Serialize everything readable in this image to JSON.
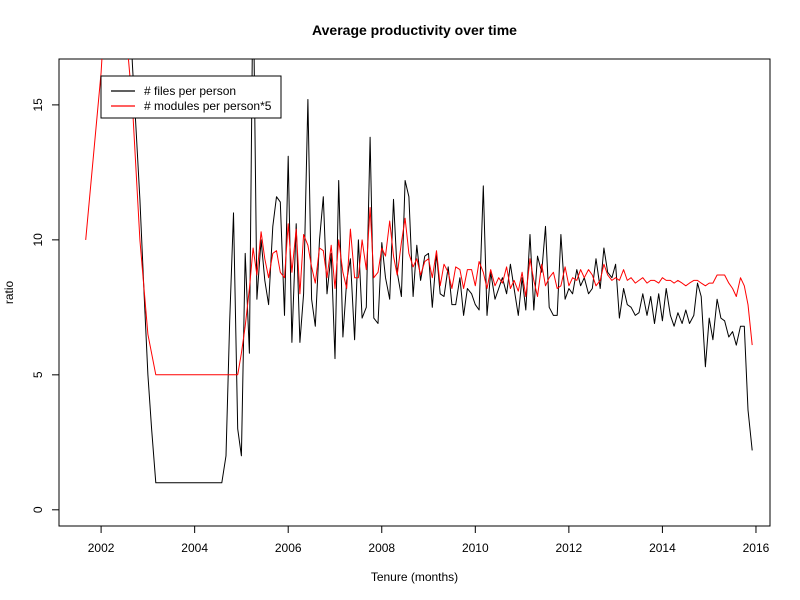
{
  "chart_data": {
    "type": "line",
    "title": "Average productivity over time",
    "xlabel": "Tenure (months)",
    "ylabel": "ratio",
    "xlim": [
      2001.1,
      2016.3
    ],
    "ylim": [
      -0.6,
      16.7
    ],
    "x_ticks": [
      {
        "value": 2002,
        "label": "2002"
      },
      {
        "value": 2004,
        "label": "2004"
      },
      {
        "value": 2006,
        "label": "2006"
      },
      {
        "value": 2008,
        "label": "2008"
      },
      {
        "value": 2010,
        "label": "2010"
      },
      {
        "value": 2012,
        "label": "2012"
      },
      {
        "value": 2014,
        "label": "2014"
      },
      {
        "value": 2016,
        "label": "2016"
      }
    ],
    "y_ticks": [
      {
        "value": 0,
        "label": "0"
      },
      {
        "value": 5,
        "label": "5"
      },
      {
        "value": 10,
        "label": "10"
      },
      {
        "value": 15,
        "label": "15"
      }
    ],
    "grid": false,
    "legend_position": "top-left",
    "series": [
      {
        "name": "# files per person",
        "color": "#000000",
        "points": [
          [
            2002.58,
            20
          ],
          [
            2002.67,
            16.5
          ],
          [
            2002.75,
            14
          ],
          [
            2002.83,
            11.5
          ],
          [
            2002.92,
            8
          ],
          [
            2003.0,
            5
          ],
          [
            2003.08,
            3
          ],
          [
            2003.17,
            1
          ],
          [
            2003.5,
            1
          ],
          [
            2004.0,
            1
          ],
          [
            2004.5,
            1
          ],
          [
            2004.58,
            1
          ],
          [
            2004.67,
            2
          ],
          [
            2004.75,
            7
          ],
          [
            2004.83,
            11
          ],
          [
            2004.92,
            3
          ],
          [
            2005.0,
            2
          ],
          [
            2005.08,
            9.5
          ],
          [
            2005.17,
            5.8
          ],
          [
            2005.25,
            20
          ],
          [
            2005.33,
            7.8
          ],
          [
            2005.42,
            10
          ],
          [
            2005.5,
            8.5
          ],
          [
            2005.58,
            7.6
          ],
          [
            2005.67,
            10.5
          ],
          [
            2005.75,
            11.6
          ],
          [
            2005.83,
            11.4
          ],
          [
            2005.92,
            7.2
          ],
          [
            2006.0,
            13.1
          ],
          [
            2006.08,
            6.2
          ],
          [
            2006.17,
            10.6
          ],
          [
            2006.25,
            6.2
          ],
          [
            2006.33,
            8.0
          ],
          [
            2006.42,
            15.2
          ],
          [
            2006.5,
            7.8
          ],
          [
            2006.58,
            6.8
          ],
          [
            2006.67,
            10.0
          ],
          [
            2006.75,
            11.6
          ],
          [
            2006.83,
            8.0
          ],
          [
            2006.92,
            9.5
          ],
          [
            2007.0,
            5.6
          ],
          [
            2007.08,
            12.2
          ],
          [
            2007.17,
            6.4
          ],
          [
            2007.25,
            8.5
          ],
          [
            2007.33,
            9.3
          ],
          [
            2007.42,
            6.3
          ],
          [
            2007.5,
            10.0
          ],
          [
            2007.58,
            7.1
          ],
          [
            2007.67,
            7.5
          ],
          [
            2007.75,
            13.8
          ],
          [
            2007.83,
            7.1
          ],
          [
            2007.92,
            6.9
          ],
          [
            2008.0,
            9.9
          ],
          [
            2008.08,
            8.6
          ],
          [
            2008.17,
            7.8
          ],
          [
            2008.25,
            11.5
          ],
          [
            2008.33,
            8.8
          ],
          [
            2008.42,
            7.9
          ],
          [
            2008.5,
            12.2
          ],
          [
            2008.58,
            11.6
          ],
          [
            2008.67,
            7.9
          ],
          [
            2008.75,
            9.8
          ],
          [
            2008.83,
            8.5
          ],
          [
            2008.92,
            9.4
          ],
          [
            2009.0,
            9.5
          ],
          [
            2009.08,
            7.5
          ],
          [
            2009.17,
            9.5
          ],
          [
            2009.25,
            8.0
          ],
          [
            2009.33,
            7.9
          ],
          [
            2009.42,
            9.0
          ],
          [
            2009.5,
            7.6
          ],
          [
            2009.58,
            7.6
          ],
          [
            2009.67,
            8.6
          ],
          [
            2009.75,
            7.2
          ],
          [
            2009.83,
            8.2
          ],
          [
            2009.92,
            8.0
          ],
          [
            2010.0,
            7.6
          ],
          [
            2010.08,
            7.4
          ],
          [
            2010.17,
            12.0
          ],
          [
            2010.25,
            7.2
          ],
          [
            2010.33,
            8.8
          ],
          [
            2010.42,
            7.8
          ],
          [
            2010.5,
            8.2
          ],
          [
            2010.58,
            8.6
          ],
          [
            2010.67,
            8.0
          ],
          [
            2010.75,
            9.1
          ],
          [
            2010.83,
            8.2
          ],
          [
            2010.92,
            7.2
          ],
          [
            2011.0,
            8.6
          ],
          [
            2011.08,
            7.4
          ],
          [
            2011.17,
            10.2
          ],
          [
            2011.25,
            7.4
          ],
          [
            2011.33,
            9.4
          ],
          [
            2011.42,
            8.8
          ],
          [
            2011.5,
            10.5
          ],
          [
            2011.58,
            7.5
          ],
          [
            2011.67,
            7.2
          ],
          [
            2011.75,
            7.2
          ],
          [
            2011.83,
            10.2
          ],
          [
            2011.92,
            7.8
          ],
          [
            2012.0,
            8.2
          ],
          [
            2012.08,
            8.0
          ],
          [
            2012.17,
            8.9
          ],
          [
            2012.25,
            8.3
          ],
          [
            2012.33,
            8.6
          ],
          [
            2012.42,
            8.0
          ],
          [
            2012.5,
            8.2
          ],
          [
            2012.58,
            9.3
          ],
          [
            2012.67,
            8.2
          ],
          [
            2012.75,
            9.7
          ],
          [
            2012.83,
            8.8
          ],
          [
            2012.92,
            8.6
          ],
          [
            2013.0,
            9.1
          ],
          [
            2013.08,
            7.1
          ],
          [
            2013.17,
            8.2
          ],
          [
            2013.25,
            7.6
          ],
          [
            2013.33,
            7.5
          ],
          [
            2013.42,
            7.2
          ],
          [
            2013.5,
            7.3
          ],
          [
            2013.58,
            8.0
          ],
          [
            2013.67,
            7.2
          ],
          [
            2013.75,
            7.9
          ],
          [
            2013.83,
            6.9
          ],
          [
            2013.92,
            8.0
          ],
          [
            2014.0,
            7.0
          ],
          [
            2014.08,
            8.2
          ],
          [
            2014.17,
            7.2
          ],
          [
            2014.25,
            6.8
          ],
          [
            2014.33,
            7.3
          ],
          [
            2014.42,
            6.9
          ],
          [
            2014.5,
            7.4
          ],
          [
            2014.58,
            6.9
          ],
          [
            2014.67,
            7.2
          ],
          [
            2014.75,
            8.4
          ],
          [
            2014.83,
            7.9
          ],
          [
            2014.92,
            5.3
          ],
          [
            2015.0,
            7.1
          ],
          [
            2015.08,
            6.3
          ],
          [
            2015.17,
            7.8
          ],
          [
            2015.25,
            7.1
          ],
          [
            2015.33,
            7.0
          ],
          [
            2015.42,
            6.4
          ],
          [
            2015.5,
            6.6
          ],
          [
            2015.58,
            6.1
          ],
          [
            2015.67,
            6.8
          ],
          [
            2015.75,
            6.8
          ],
          [
            2015.83,
            3.7
          ],
          [
            2015.92,
            2.2
          ]
        ]
      },
      {
        "name": "# modules per person*5",
        "color": "#ff0000",
        "points": [
          [
            2001.67,
            10
          ],
          [
            2002.0,
            16.2
          ],
          [
            2002.08,
            18.5
          ],
          [
            2002.17,
            20
          ],
          [
            2002.5,
            20
          ],
          [
            2002.58,
            16.8
          ],
          [
            2002.67,
            15
          ],
          [
            2002.83,
            10
          ],
          [
            2003.0,
            6.5
          ],
          [
            2003.17,
            5
          ],
          [
            2003.5,
            5
          ],
          [
            2004.0,
            5
          ],
          [
            2004.5,
            5
          ],
          [
            2004.92,
            5
          ],
          [
            2005.0,
            5.8
          ],
          [
            2005.08,
            6.8
          ],
          [
            2005.17,
            8.2
          ],
          [
            2005.25,
            9.7
          ],
          [
            2005.33,
            8.7
          ],
          [
            2005.42,
            10.3
          ],
          [
            2005.5,
            9.3
          ],
          [
            2005.58,
            8.6
          ],
          [
            2005.67,
            9.5
          ],
          [
            2005.75,
            9.6
          ],
          [
            2005.83,
            8.8
          ],
          [
            2005.92,
            8.6
          ],
          [
            2006.0,
            10.6
          ],
          [
            2006.08,
            8.8
          ],
          [
            2006.17,
            10.4
          ],
          [
            2006.25,
            8.0
          ],
          [
            2006.33,
            10.2
          ],
          [
            2006.42,
            9.8
          ],
          [
            2006.5,
            9.0
          ],
          [
            2006.58,
            8.4
          ],
          [
            2006.67,
            9.7
          ],
          [
            2006.75,
            9.6
          ],
          [
            2006.83,
            8.6
          ],
          [
            2006.92,
            9.8
          ],
          [
            2007.0,
            8.2
          ],
          [
            2007.08,
            10.0
          ],
          [
            2007.17,
            8.8
          ],
          [
            2007.25,
            8.2
          ],
          [
            2007.33,
            10.4
          ],
          [
            2007.42,
            8.6
          ],
          [
            2007.5,
            8.6
          ],
          [
            2007.58,
            10.0
          ],
          [
            2007.67,
            8.9
          ],
          [
            2007.75,
            11.2
          ],
          [
            2007.83,
            8.6
          ],
          [
            2007.92,
            8.8
          ],
          [
            2008.0,
            9.7
          ],
          [
            2008.08,
            9.4
          ],
          [
            2008.17,
            10.7
          ],
          [
            2008.25,
            9.4
          ],
          [
            2008.33,
            8.7
          ],
          [
            2008.42,
            9.9
          ],
          [
            2008.5,
            10.8
          ],
          [
            2008.58,
            9.5
          ],
          [
            2008.67,
            9.0
          ],
          [
            2008.75,
            9.3
          ],
          [
            2008.83,
            8.7
          ],
          [
            2008.92,
            9.2
          ],
          [
            2009.0,
            9.3
          ],
          [
            2009.08,
            8.6
          ],
          [
            2009.17,
            9.6
          ],
          [
            2009.25,
            8.3
          ],
          [
            2009.33,
            9.1
          ],
          [
            2009.42,
            8.8
          ],
          [
            2009.5,
            8.2
          ],
          [
            2009.58,
            9.0
          ],
          [
            2009.67,
            8.9
          ],
          [
            2009.75,
            8.2
          ],
          [
            2009.83,
            8.9
          ],
          [
            2009.92,
            8.9
          ],
          [
            2010.0,
            8.3
          ],
          [
            2010.08,
            9.2
          ],
          [
            2010.17,
            8.8
          ],
          [
            2010.25,
            8.2
          ],
          [
            2010.33,
            8.9
          ],
          [
            2010.42,
            8.3
          ],
          [
            2010.5,
            8.6
          ],
          [
            2010.58,
            8.4
          ],
          [
            2010.67,
            9.0
          ],
          [
            2010.75,
            8.2
          ],
          [
            2010.83,
            8.5
          ],
          [
            2010.92,
            8.1
          ],
          [
            2011.0,
            8.8
          ],
          [
            2011.08,
            7.9
          ],
          [
            2011.17,
            9.3
          ],
          [
            2011.25,
            8.5
          ],
          [
            2011.33,
            7.9
          ],
          [
            2011.42,
            9.1
          ],
          [
            2011.5,
            8.3
          ],
          [
            2011.58,
            8.6
          ],
          [
            2011.67,
            8.8
          ],
          [
            2011.75,
            8.2
          ],
          [
            2011.83,
            8.3
          ],
          [
            2011.92,
            9.0
          ],
          [
            2012.0,
            8.3
          ],
          [
            2012.08,
            8.6
          ],
          [
            2012.17,
            8.5
          ],
          [
            2012.25,
            8.9
          ],
          [
            2012.33,
            8.6
          ],
          [
            2012.42,
            8.9
          ],
          [
            2012.5,
            8.7
          ],
          [
            2012.58,
            8.3
          ],
          [
            2012.67,
            8.5
          ],
          [
            2012.75,
            9.1
          ],
          [
            2012.83,
            8.7
          ],
          [
            2012.92,
            8.5
          ],
          [
            2013.0,
            8.6
          ],
          [
            2013.08,
            8.5
          ],
          [
            2013.17,
            8.9
          ],
          [
            2013.25,
            8.5
          ],
          [
            2013.33,
            8.6
          ],
          [
            2013.42,
            8.4
          ],
          [
            2013.5,
            8.5
          ],
          [
            2013.58,
            8.6
          ],
          [
            2013.67,
            8.4
          ],
          [
            2013.75,
            8.5
          ],
          [
            2013.83,
            8.5
          ],
          [
            2013.92,
            8.4
          ],
          [
            2014.0,
            8.6
          ],
          [
            2014.08,
            8.5
          ],
          [
            2014.17,
            8.5
          ],
          [
            2014.25,
            8.4
          ],
          [
            2014.33,
            8.5
          ],
          [
            2014.42,
            8.4
          ],
          [
            2014.5,
            8.3
          ],
          [
            2014.58,
            8.4
          ],
          [
            2014.67,
            8.5
          ],
          [
            2014.75,
            8.5
          ],
          [
            2014.83,
            8.4
          ],
          [
            2014.92,
            8.3
          ],
          [
            2015.0,
            8.4
          ],
          [
            2015.08,
            8.4
          ],
          [
            2015.17,
            8.7
          ],
          [
            2015.25,
            8.7
          ],
          [
            2015.33,
            8.7
          ],
          [
            2015.42,
            8.4
          ],
          [
            2015.5,
            8.2
          ],
          [
            2015.58,
            7.9
          ],
          [
            2015.67,
            8.6
          ],
          [
            2015.75,
            8.3
          ],
          [
            2015.83,
            7.6
          ],
          [
            2015.92,
            6.1
          ]
        ]
      }
    ]
  }
}
